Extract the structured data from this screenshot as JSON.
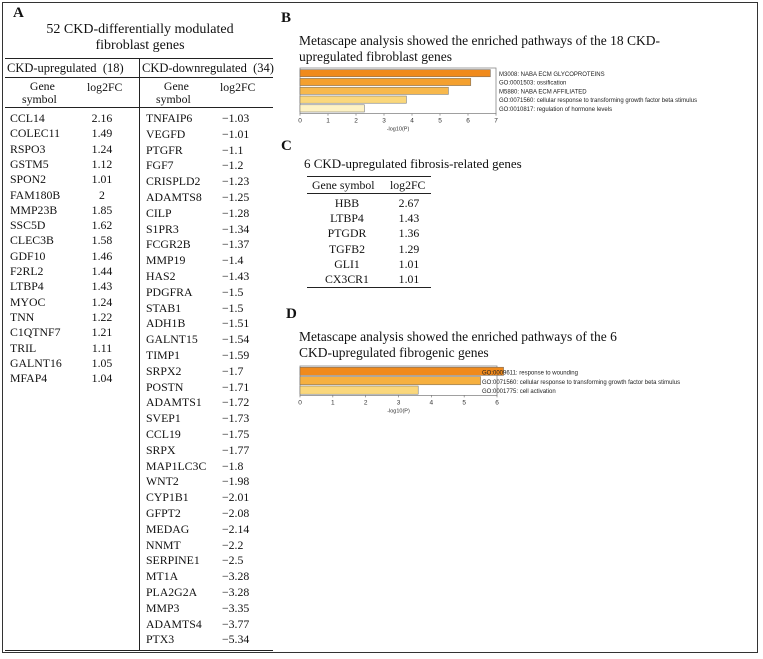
{
  "panel_a": {
    "letter": "A",
    "title_line1": "52 CKD-differentially modulated",
    "title_line2": "fibroblast genes",
    "up_header": "CKD-upregulated",
    "up_count": "(18)",
    "down_header": "CKD-downregulated",
    "down_count": "(34)",
    "col_gene_l1": "Gene",
    "col_gene_l2": "symbol",
    "col_fc": "log2FC",
    "up": [
      {
        "g": "CCL14",
        "v": "2.16"
      },
      {
        "g": "COLEC11",
        "v": "1.49"
      },
      {
        "g": "RSPO3",
        "v": "1.24"
      },
      {
        "g": "GSTM5",
        "v": "1.12"
      },
      {
        "g": "SPON2",
        "v": "1.01"
      },
      {
        "g": "FAM180B",
        "v": "2"
      },
      {
        "g": "MMP23B",
        "v": "1.85"
      },
      {
        "g": "SSC5D",
        "v": "1.62"
      },
      {
        "g": "CLEC3B",
        "v": "1.58"
      },
      {
        "g": "GDF10",
        "v": "1.46"
      },
      {
        "g": "F2RL2",
        "v": "1.44"
      },
      {
        "g": "LTBP4",
        "v": "1.43"
      },
      {
        "g": "MYOC",
        "v": "1.24"
      },
      {
        "g": "TNN",
        "v": "1.22"
      },
      {
        "g": "C1QTNF7",
        "v": "1.21"
      },
      {
        "g": "TRIL",
        "v": "1.11"
      },
      {
        "g": "GALNT16",
        "v": "1.05"
      },
      {
        "g": "MFAP4",
        "v": "1.04"
      }
    ],
    "down": [
      {
        "g": "TNFAIP6",
        "v": "−1.03"
      },
      {
        "g": "VEGFD",
        "v": "−1.01"
      },
      {
        "g": "PTGFR",
        "v": "−1.1"
      },
      {
        "g": "FGF7",
        "v": "−1.2"
      },
      {
        "g": "CRISPLD2",
        "v": "−1.23"
      },
      {
        "g": "ADAMTS8",
        "v": "−1.25"
      },
      {
        "g": "CILP",
        "v": "−1.28"
      },
      {
        "g": "S1PR3",
        "v": "−1.34"
      },
      {
        "g": "FCGR2B",
        "v": "−1.37"
      },
      {
        "g": "MMP19",
        "v": "−1.4"
      },
      {
        "g": "HAS2",
        "v": "−1.43"
      },
      {
        "g": "PDGFRA",
        "v": "−1.5"
      },
      {
        "g": "STAB1",
        "v": "−1.5"
      },
      {
        "g": "ADH1B",
        "v": "−1.51"
      },
      {
        "g": "GALNT15",
        "v": "−1.54"
      },
      {
        "g": "TIMP1",
        "v": "−1.59"
      },
      {
        "g": "SRPX2",
        "v": "−1.7"
      },
      {
        "g": "POSTN",
        "v": "−1.71"
      },
      {
        "g": "ADAMTS1",
        "v": "−1.72"
      },
      {
        "g": "SVEP1",
        "v": "−1.73"
      },
      {
        "g": "CCL19",
        "v": "−1.75"
      },
      {
        "g": "SRPX",
        "v": "−1.77"
      },
      {
        "g": "MAP1LC3C",
        "v": "−1.8"
      },
      {
        "g": "WNT2",
        "v": "−1.98"
      },
      {
        "g": "CYP1B1",
        "v": "−2.01"
      },
      {
        "g": "GFPT2",
        "v": "−2.08"
      },
      {
        "g": "MEDAG",
        "v": "−2.14"
      },
      {
        "g": "NNMT",
        "v": "−2.2"
      },
      {
        "g": "SERPINE1",
        "v": "−2.5"
      },
      {
        "g": "MT1A",
        "v": "−3.28"
      },
      {
        "g": "PLA2G2A",
        "v": "−3.28"
      },
      {
        "g": "MMP3",
        "v": "−3.35"
      },
      {
        "g": "ADAMTS4",
        "v": "−3.77"
      },
      {
        "g": "PTX3",
        "v": "−5.34"
      }
    ]
  },
  "panel_b": {
    "letter": "B",
    "title_line1": "Metascape analysis showed the enriched pathways of the 18 CKD-",
    "title_line2": "upregulated fibroblast genes",
    "xlabel": "-log10(P)"
  },
  "panel_c": {
    "letter": "C",
    "title": "6 CKD-upregulated fibrosis-related genes",
    "col_gene": "Gene symbol",
    "col_fc": "log2FC",
    "rows": [
      {
        "g": "HBB",
        "v": "2.67"
      },
      {
        "g": "LTBP4",
        "v": "1.43"
      },
      {
        "g": "PTGDR",
        "v": "1.36"
      },
      {
        "g": "TGFB2",
        "v": "1.29"
      },
      {
        "g": "GLI1",
        "v": "1.01"
      },
      {
        "g": "CX3CR1",
        "v": "1.01"
      }
    ]
  },
  "panel_d": {
    "letter": "D",
    "title_line1": "Metascape analysis showed the enriched pathways of the 6",
    "title_line2": "CKD-upregulated fibrogenic genes",
    "xlabel": "-log10(P)"
  },
  "chart_data": [
    {
      "type": "bar",
      "orientation": "horizontal",
      "categories": [
        "M3008: NABA ECM GLYCOPROTEINS",
        "GO:0001503: ossification",
        "M5880: NABA ECM AFFILIATED",
        "GO:0071560: cellular response to transforming growth factor beta stimulus",
        "GO:0010817: regulation of hormone levels"
      ],
      "values": [
        6.8,
        6.1,
        5.3,
        3.8,
        2.3
      ],
      "colors": [
        "#f08a1c",
        "#f4a02e",
        "#f7b84c",
        "#fad77c",
        "#fdf2c4"
      ],
      "xlabel": "-log10(P)",
      "xlim": [
        0,
        7
      ],
      "xticks": [
        0,
        1,
        2,
        3,
        4,
        5,
        6,
        7
      ]
    },
    {
      "type": "bar",
      "orientation": "horizontal",
      "categories": [
        "GO:0009611: response to wounding",
        "GO:0071560: cellular response to transforming growth factor beta stimulus",
        "GO:0001775: cell activation"
      ],
      "values": [
        6.2,
        5.5,
        3.6
      ],
      "colors": [
        "#f08a1c",
        "#f6b040",
        "#fad77c"
      ],
      "xlabel": "-log10(P)",
      "xlim": [
        0,
        6
      ],
      "xticks": [
        0,
        1,
        2,
        3,
        4,
        5,
        6
      ]
    }
  ]
}
